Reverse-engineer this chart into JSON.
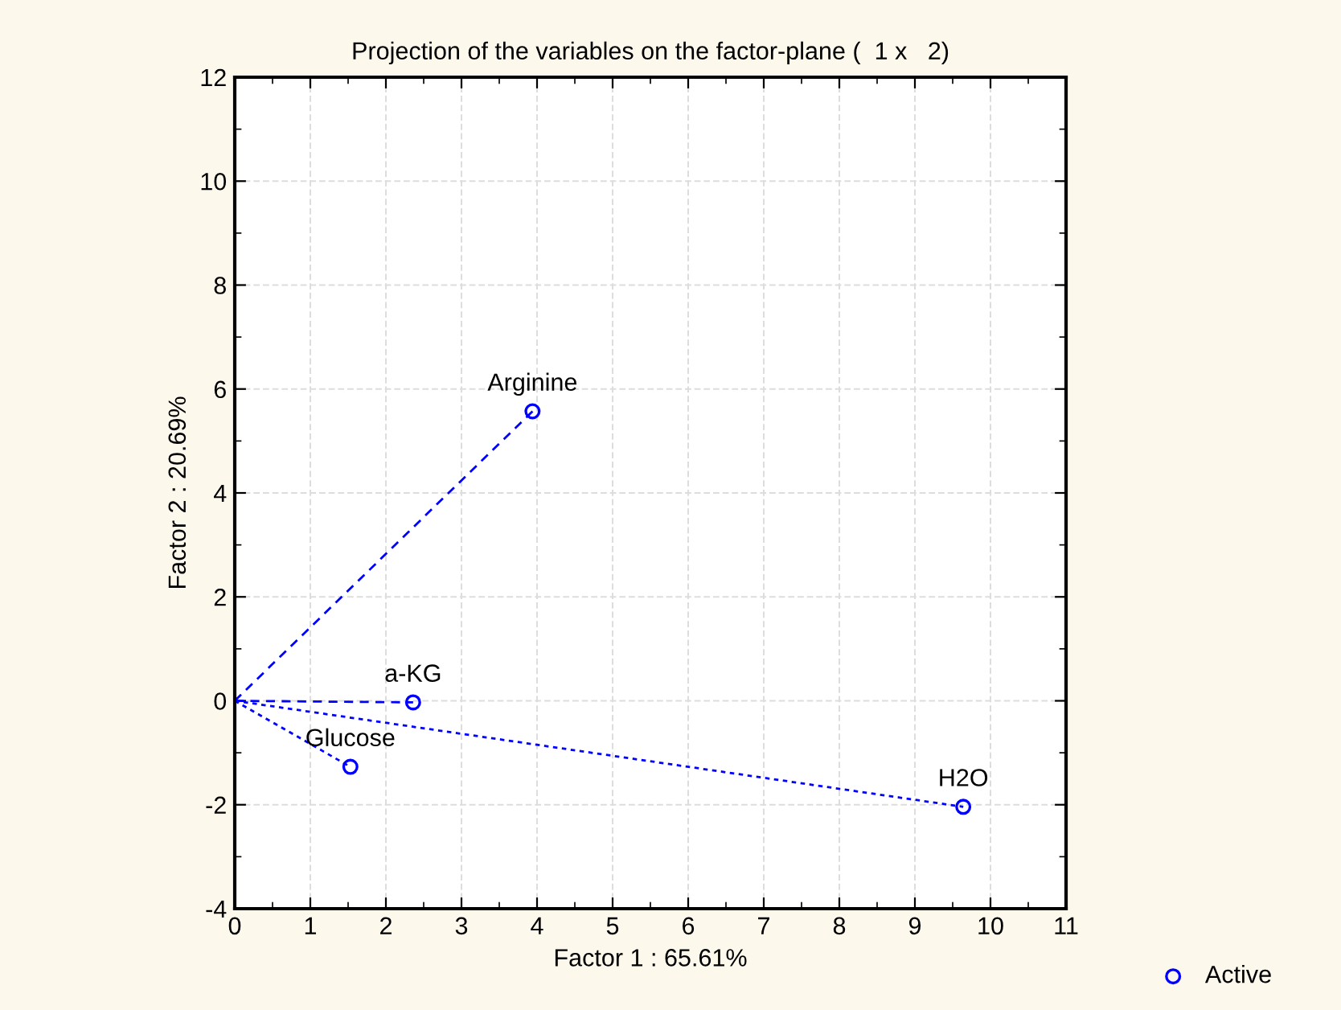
{
  "chart_data": {
    "type": "scatter",
    "title": "Projection of the variables on the factor-plane (  1 x   2)",
    "xlabel": "Factor 1 : 65.61%",
    "ylabel": "Factor 2 : 20.69%",
    "series": [
      {
        "type": "line",
        "x": [
          0,
          3.94
        ],
        "values": [
          0,
          5.57
        ],
        "color": "#0000ff",
        "line_style": "dashed",
        "marker": "none"
      },
      {
        "type": "line",
        "x": [
          0,
          2.36
        ],
        "values": [
          0,
          -0.03
        ],
        "color": "#0000ff",
        "line_style": "dashed",
        "marker": "none"
      },
      {
        "type": "line",
        "x": [
          0,
          1.53
        ],
        "values": [
          0,
          -1.27
        ],
        "color": "#0000ff",
        "line_style": "dotted",
        "marker": "none"
      },
      {
        "type": "line",
        "x": [
          0,
          9.64
        ],
        "values": [
          0,
          -2.04
        ],
        "color": "#0000ff",
        "line_style": "dotted",
        "marker": "none"
      },
      {
        "name": "Active",
        "x": [
          3.94,
          2.36,
          1.53,
          9.64
        ],
        "values": [
          5.57,
          -0.03,
          -1.27,
          -2.04
        ],
        "color": "#0000ff",
        "marker": "circle"
      }
    ],
    "annotations": [
      {
        "text": "Arginine",
        "x": 3.94,
        "y": 5.57
      },
      {
        "text": "a-KG",
        "x": 2.36,
        "y": -0.03
      },
      {
        "text": "Glucose",
        "x": 1.53,
        "y": -1.27
      },
      {
        "text": "H2O",
        "x": 9.64,
        "y": -2.04
      }
    ],
    "xlim": [
      0,
      11
    ],
    "xticks": [
      0,
      1,
      2,
      3,
      4,
      5,
      6,
      7,
      8,
      9,
      10,
      11
    ],
    "ylim": [
      -4,
      12
    ],
    "yticks": [
      -4,
      -2,
      0,
      2,
      4,
      6,
      8,
      10,
      12
    ],
    "grid": true,
    "legend": "bottom right"
  }
}
